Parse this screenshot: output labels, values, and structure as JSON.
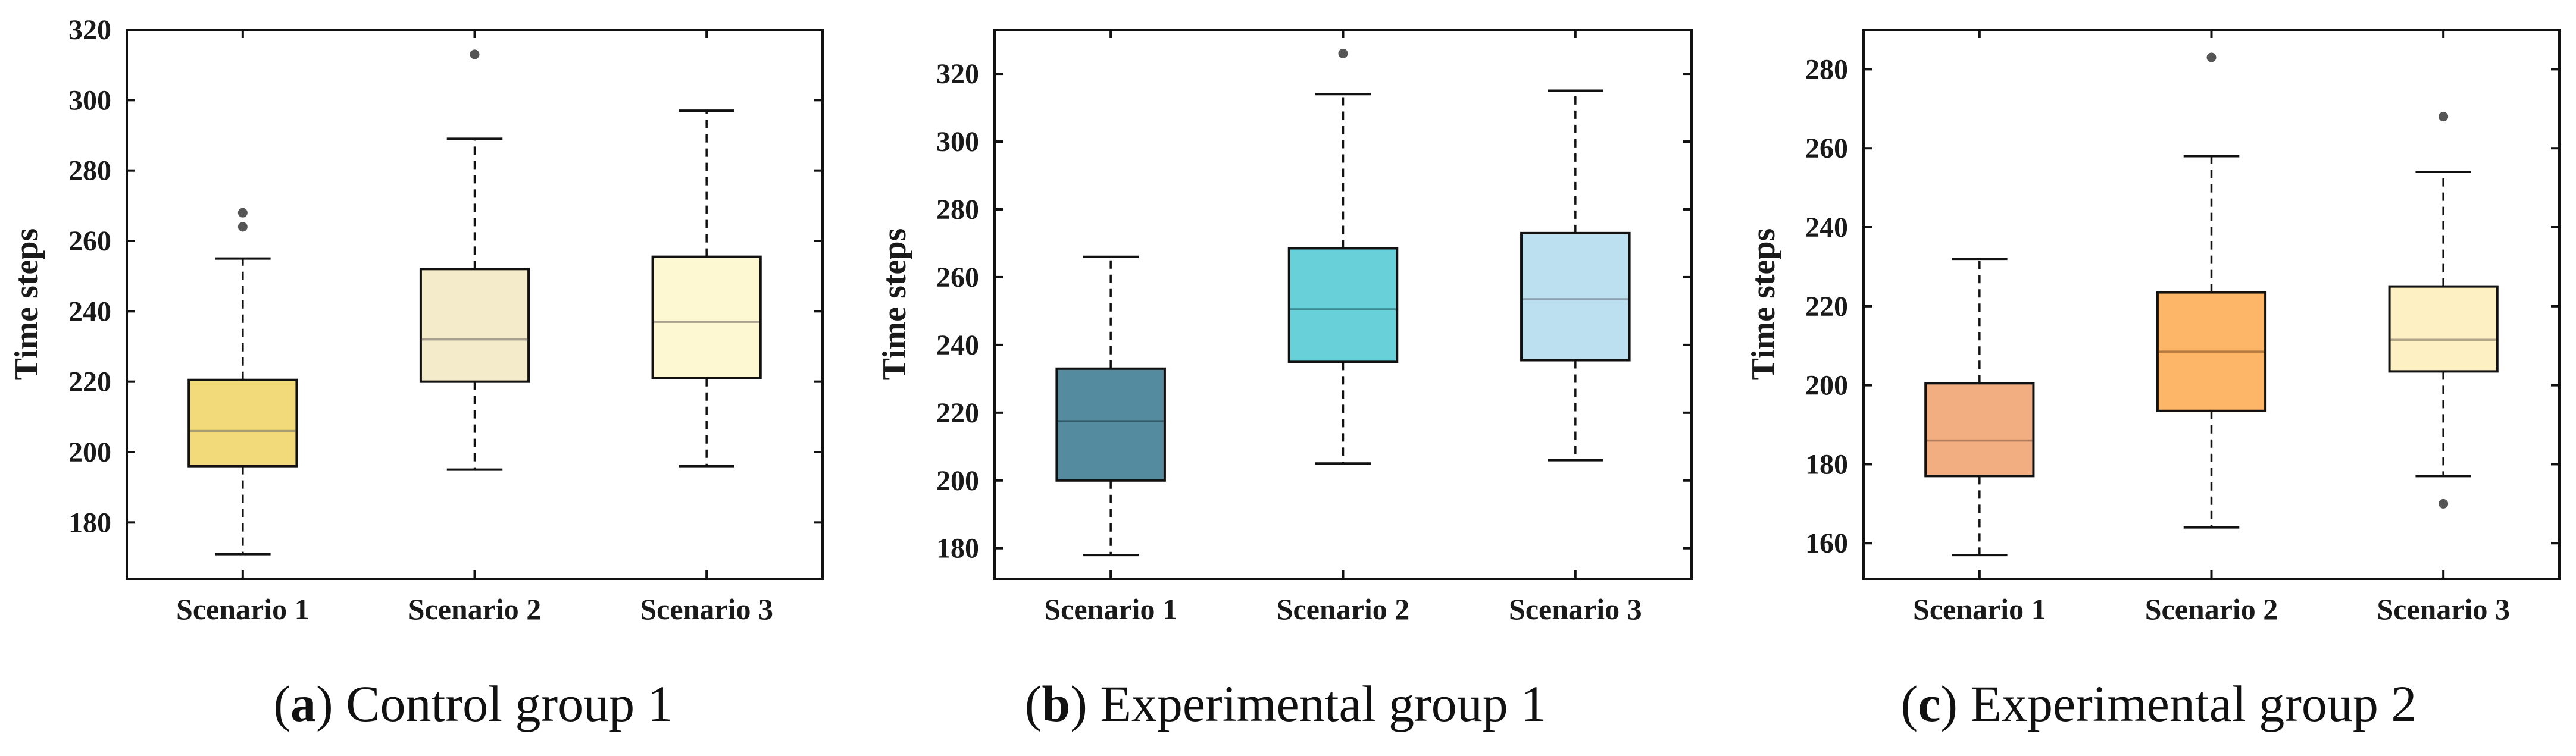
{
  "chart_data": [
    {
      "type": "box",
      "caption_letter": "a",
      "caption_text": ") Control group 1",
      "ylabel": "Time steps",
      "xlabel": "",
      "ylim": [
        164,
        320
      ],
      "yticks": [
        180,
        200,
        220,
        240,
        260,
        280,
        300,
        320
      ],
      "categories": [
        "Scenario 1",
        "Scenario 2",
        "Scenario 3"
      ],
      "boxes": [
        {
          "min": 171,
          "q1": 196,
          "median": 206,
          "q3": 220.5,
          "max": 255,
          "outliers": [
            264,
            268
          ],
          "fill": "#f2d97a",
          "median_color": "#a8a070"
        },
        {
          "min": 195,
          "q1": 220,
          "median": 232,
          "q3": 252,
          "max": 289,
          "outliers": [
            313
          ],
          "fill": "#f3ebc9",
          "median_color": "#a8a090"
        },
        {
          "min": 196,
          "q1": 221,
          "median": 237,
          "q3": 255.5,
          "max": 297,
          "outliers": [],
          "fill": "#fdf8d2",
          "median_color": "#a8a090"
        }
      ]
    },
    {
      "type": "box",
      "caption_letter": "b",
      "caption_text": ") Experimental group 1",
      "ylabel": "Time steps",
      "xlabel": "",
      "ylim": [
        171,
        333
      ],
      "yticks": [
        180,
        200,
        220,
        240,
        260,
        280,
        300,
        320
      ],
      "categories": [
        "Scenario 1",
        "Scenario 2",
        "Scenario 3"
      ],
      "boxes": [
        {
          "min": 178,
          "q1": 200,
          "median": 217.5,
          "q3": 233,
          "max": 266,
          "outliers": [],
          "fill": "#558b9e",
          "median_color": "#2f5a6a"
        },
        {
          "min": 205,
          "q1": 235,
          "median": 250.5,
          "q3": 268.5,
          "max": 314,
          "outliers": [
            326
          ],
          "fill": "#67d0d8",
          "median_color": "#3a8a92"
        },
        {
          "min": 206,
          "q1": 235.5,
          "median": 253.5,
          "q3": 273,
          "max": 315,
          "outliers": [],
          "fill": "#bde0f0",
          "median_color": "#8aa0b0"
        }
      ]
    },
    {
      "type": "box",
      "caption_letter": "c",
      "caption_text": ") Experimental group 2",
      "ylabel": "Time steps",
      "xlabel": "",
      "ylim": [
        151,
        290
      ],
      "yticks": [
        160,
        180,
        200,
        220,
        240,
        260,
        280
      ],
      "categories": [
        "Scenario 1",
        "Scenario 2",
        "Scenario 3"
      ],
      "boxes": [
        {
          "min": 157,
          "q1": 177,
          "median": 186,
          "q3": 200.5,
          "max": 232,
          "outliers": [],
          "fill": "#f2ad80",
          "median_color": "#b07a58"
        },
        {
          "min": 164,
          "q1": 193.5,
          "median": 208.5,
          "q3": 223.5,
          "max": 258,
          "outliers": [
            283
          ],
          "fill": "#fdb568",
          "median_color": "#b07a40"
        },
        {
          "min": 177,
          "q1": 203.5,
          "median": 211.5,
          "q3": 225,
          "max": 254,
          "outliers": [
            170,
            268
          ],
          "fill": "#fdf0c2",
          "median_color": "#b0a488"
        }
      ]
    }
  ]
}
